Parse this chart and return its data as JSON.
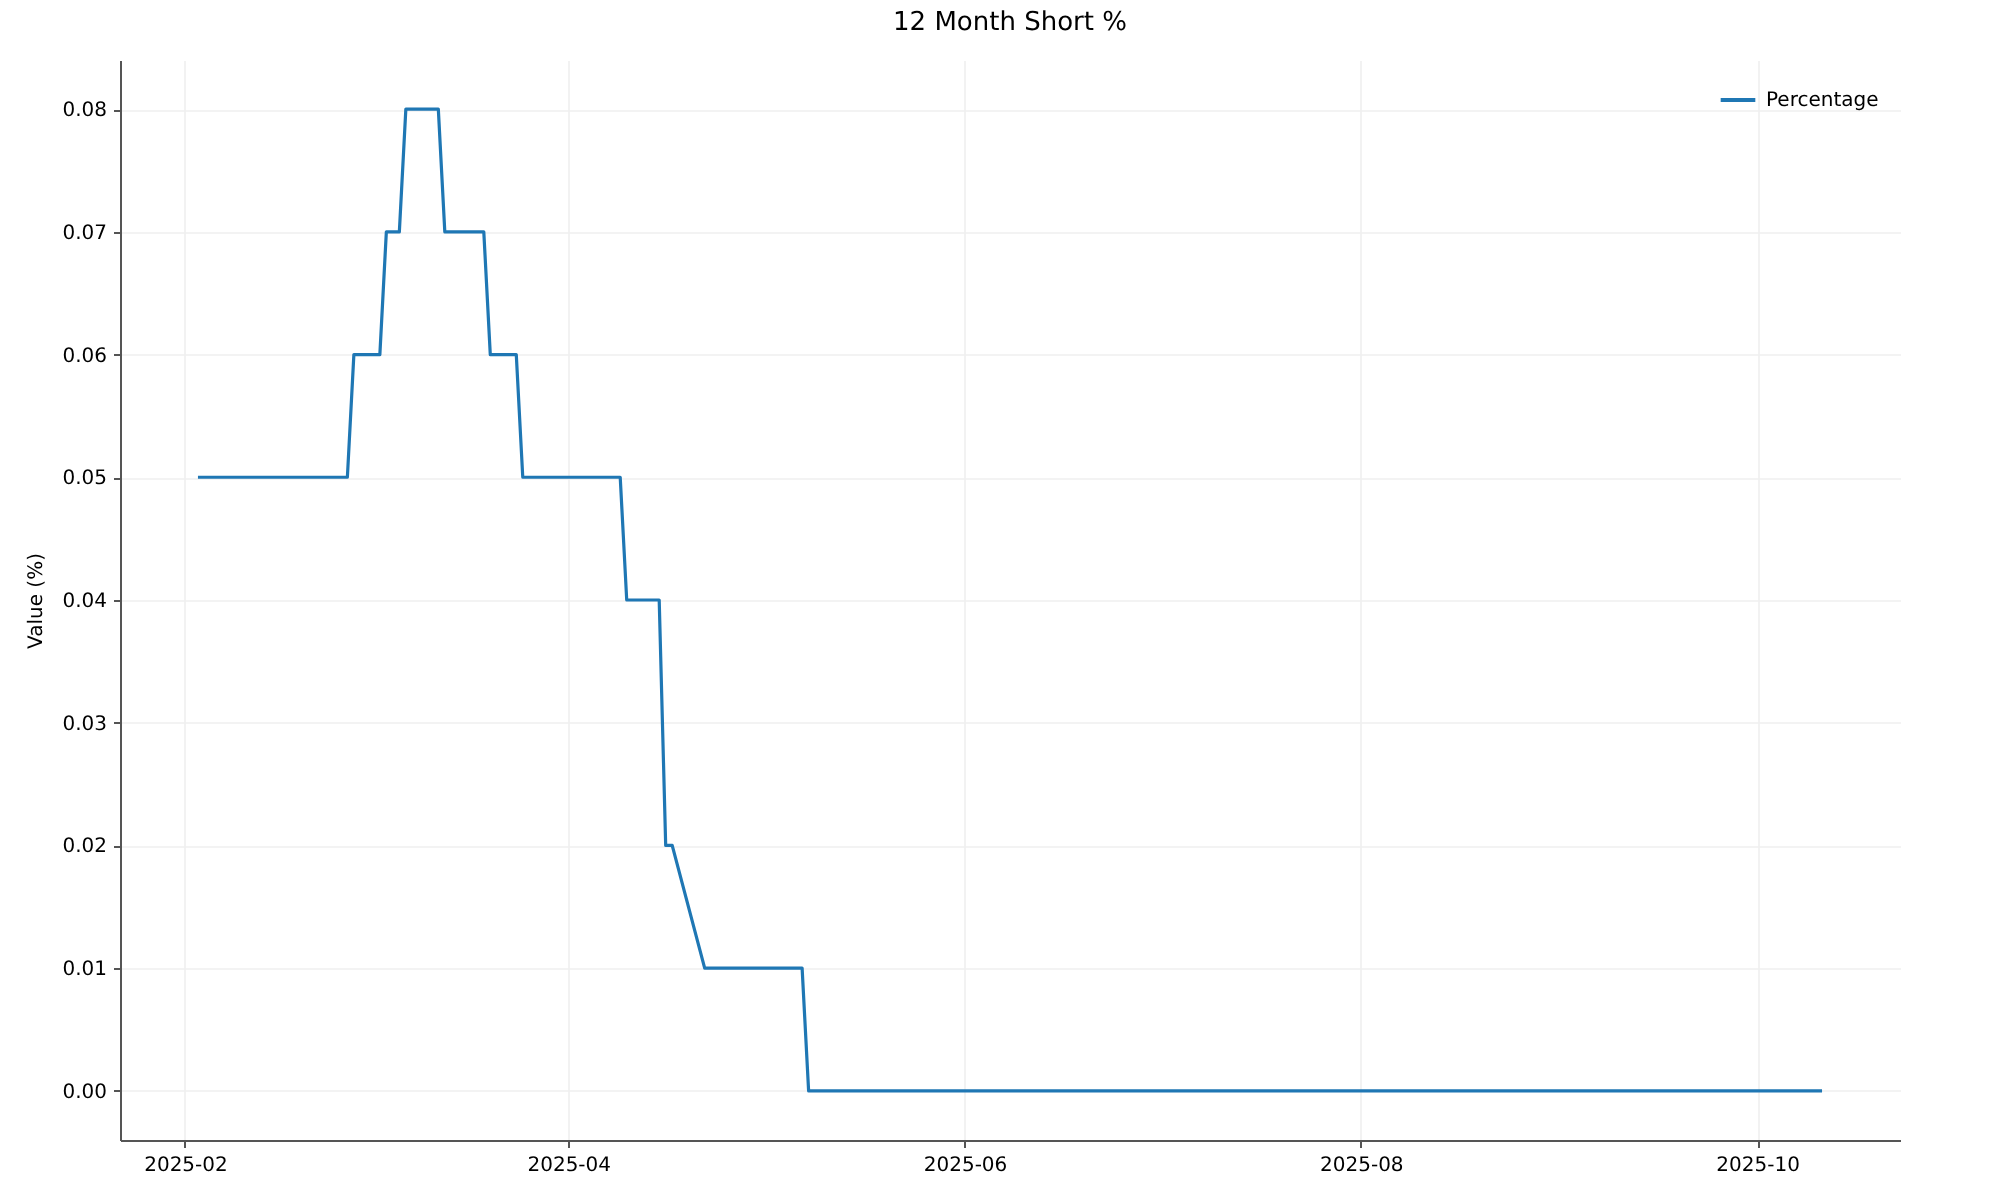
{
  "chart_data": {
    "type": "line",
    "title": "12 Month Short %",
    "ylabel": "Value (%)",
    "x": [
      "2025-02-03",
      "2025-02-26",
      "2025-02-27",
      "2025-03-03",
      "2025-03-04",
      "2025-03-06",
      "2025-03-07",
      "2025-03-12",
      "2025-03-13",
      "2025-03-19",
      "2025-03-20",
      "2025-03-24",
      "2025-03-25",
      "2025-04-09",
      "2025-04-10",
      "2025-04-15",
      "2025-04-16",
      "2025-04-17",
      "2025-04-22",
      "2025-05-07",
      "2025-05-08",
      "2025-10-11"
    ],
    "series": [
      {
        "name": "Percentage",
        "color": "#1f77b4",
        "values": [
          0.05,
          0.05,
          0.06,
          0.06,
          0.07,
          0.07,
          0.08,
          0.08,
          0.07,
          0.07,
          0.06,
          0.06,
          0.05,
          0.05,
          0.04,
          0.04,
          0.02,
          0.02,
          0.01,
          0.01,
          0,
          0
        ]
      }
    ],
    "xlim": [
      "2025-01-22",
      "2025-10-23"
    ],
    "xticks": [
      "2025-02",
      "2025-04",
      "2025-06",
      "2025-08",
      "2025-10"
    ],
    "ylim": [
      -0.004,
      0.084
    ],
    "yticks": [
      {
        "value": 0,
        "label": "0.00"
      },
      {
        "value": 0.01,
        "label": "0.01"
      },
      {
        "value": 0.02,
        "label": "0.02"
      },
      {
        "value": 0.03,
        "label": "0.03"
      },
      {
        "value": 0.04,
        "label": "0.04"
      },
      {
        "value": 0.05,
        "label": "0.05"
      },
      {
        "value": 0.06,
        "label": "0.06"
      },
      {
        "value": 0.07,
        "label": "0.07"
      },
      {
        "value": 0.08,
        "label": "0.08"
      }
    ],
    "grid": true,
    "legend": "top right"
  }
}
